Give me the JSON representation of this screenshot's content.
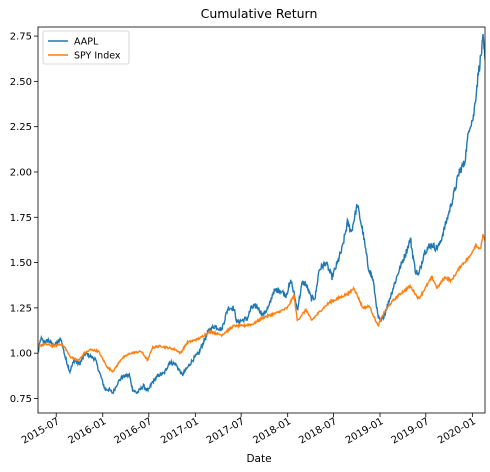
{
  "chart_data": {
    "type": "line",
    "title": "Cumulative Return",
    "xlabel": "Date",
    "ylabel": "",
    "x_range": [
      "2015-04-20",
      "2020-02-20"
    ],
    "ylim": [
      0.67,
      2.8
    ],
    "y_ticks": [
      0.75,
      1.0,
      1.25,
      1.5,
      1.75,
      2.0,
      2.25,
      2.5,
      2.75
    ],
    "y_tick_labels": [
      "0.75",
      "1.00",
      "1.25",
      "1.50",
      "1.75",
      "2.00",
      "2.25",
      "2.50",
      "2.75"
    ],
    "x_ticks": [
      "2015-07-01",
      "2016-01-01",
      "2016-07-01",
      "2017-01-01",
      "2017-07-01",
      "2018-01-01",
      "2018-07-01",
      "2019-01-01",
      "2019-07-01",
      "2020-01-01"
    ],
    "x_tick_labels": [
      "2015-07",
      "2016-01",
      "2016-07",
      "2017-01",
      "2017-07",
      "2018-01",
      "2018-07",
      "2019-01",
      "2019-07",
      "2020-01"
    ],
    "grid": false,
    "legend_position": "top-left",
    "series": [
      {
        "name": "AAPL",
        "color": "#1f77b4",
        "points": [
          [
            "2015-04-20",
            1.0
          ],
          [
            "2015-05-01",
            1.08
          ],
          [
            "2015-05-15",
            1.06
          ],
          [
            "2015-06-01",
            1.07
          ],
          [
            "2015-06-15",
            1.05
          ],
          [
            "2015-07-01",
            1.05
          ],
          [
            "2015-07-20",
            1.08
          ],
          [
            "2015-08-05",
            0.98
          ],
          [
            "2015-08-24",
            0.9
          ],
          [
            "2015-09-10",
            0.96
          ],
          [
            "2015-10-01",
            0.94
          ],
          [
            "2015-10-25",
            1.0
          ],
          [
            "2015-11-15",
            0.98
          ],
          [
            "2015-12-01",
            0.97
          ],
          [
            "2015-12-20",
            0.89
          ],
          [
            "2016-01-10",
            0.8
          ],
          [
            "2016-01-25",
            0.8
          ],
          [
            "2016-02-10",
            0.78
          ],
          [
            "2016-03-01",
            0.84
          ],
          [
            "2016-03-20",
            0.87
          ],
          [
            "2016-04-15",
            0.88
          ],
          [
            "2016-04-28",
            0.8
          ],
          [
            "2016-05-15",
            0.78
          ],
          [
            "2016-06-10",
            0.82
          ],
          [
            "2016-06-28",
            0.79
          ],
          [
            "2016-07-15",
            0.84
          ],
          [
            "2016-08-10",
            0.88
          ],
          [
            "2016-09-01",
            0.89
          ],
          [
            "2016-09-20",
            0.95
          ],
          [
            "2016-10-15",
            0.94
          ],
          [
            "2016-11-10",
            0.88
          ],
          [
            "2016-12-01",
            0.92
          ],
          [
            "2016-12-25",
            0.97
          ],
          [
            "2017-01-15",
            1.0
          ],
          [
            "2017-02-01",
            1.06
          ],
          [
            "2017-02-25",
            1.13
          ],
          [
            "2017-03-20",
            1.15
          ],
          [
            "2017-04-15",
            1.13
          ],
          [
            "2017-05-10",
            1.25
          ],
          [
            "2017-06-01",
            1.25
          ],
          [
            "2017-06-15",
            1.17
          ],
          [
            "2017-07-01",
            1.18
          ],
          [
            "2017-07-25",
            1.19
          ],
          [
            "2017-08-10",
            1.25
          ],
          [
            "2017-09-01",
            1.26
          ],
          [
            "2017-09-25",
            1.21
          ],
          [
            "2017-10-20",
            1.26
          ],
          [
            "2017-11-05",
            1.34
          ],
          [
            "2017-12-01",
            1.35
          ],
          [
            "2017-12-25",
            1.32
          ],
          [
            "2018-01-15",
            1.4
          ],
          [
            "2018-02-08",
            1.24
          ],
          [
            "2018-02-28",
            1.39
          ],
          [
            "2018-03-15",
            1.38
          ],
          [
            "2018-04-05",
            1.3
          ],
          [
            "2018-04-20",
            1.31
          ],
          [
            "2018-05-05",
            1.46
          ],
          [
            "2018-06-01",
            1.5
          ],
          [
            "2018-06-25",
            1.42
          ],
          [
            "2018-07-15",
            1.49
          ],
          [
            "2018-08-05",
            1.58
          ],
          [
            "2018-08-25",
            1.72
          ],
          [
            "2018-09-10",
            1.67
          ],
          [
            "2018-10-03",
            1.82
          ],
          [
            "2018-10-25",
            1.67
          ],
          [
            "2018-11-15",
            1.48
          ],
          [
            "2018-12-05",
            1.4
          ],
          [
            "2018-12-24",
            1.2
          ],
          [
            "2019-01-03",
            1.17
          ],
          [
            "2019-01-20",
            1.22
          ],
          [
            "2019-02-15",
            1.33
          ],
          [
            "2019-03-15",
            1.45
          ],
          [
            "2019-04-15",
            1.56
          ],
          [
            "2019-05-01",
            1.63
          ],
          [
            "2019-05-20",
            1.46
          ],
          [
            "2019-06-03",
            1.43
          ],
          [
            "2019-06-25",
            1.56
          ],
          [
            "2019-07-25",
            1.6
          ],
          [
            "2019-08-10",
            1.58
          ],
          [
            "2019-08-25",
            1.6
          ],
          [
            "2019-09-15",
            1.7
          ],
          [
            "2019-10-15",
            1.85
          ],
          [
            "2019-11-10",
            2.0
          ],
          [
            "2019-12-01",
            2.05
          ],
          [
            "2019-12-20",
            2.25
          ],
          [
            "2020-01-05",
            2.3
          ],
          [
            "2020-01-25",
            2.55
          ],
          [
            "2020-02-05",
            2.65
          ],
          [
            "2020-02-12",
            2.73
          ],
          [
            "2020-02-20",
            2.62
          ]
        ]
      },
      {
        "name": "SPY Index",
        "color": "#ff7f0e",
        "points": [
          [
            "2015-04-20",
            1.04
          ],
          [
            "2015-05-20",
            1.05
          ],
          [
            "2015-06-20",
            1.04
          ],
          [
            "2015-07-20",
            1.05
          ],
          [
            "2015-08-05",
            1.03
          ],
          [
            "2015-08-25",
            0.98
          ],
          [
            "2015-09-28",
            0.96
          ],
          [
            "2015-10-20",
            1.0
          ],
          [
            "2015-11-15",
            1.02
          ],
          [
            "2015-12-15",
            1.01
          ],
          [
            "2016-01-20",
            0.92
          ],
          [
            "2016-02-11",
            0.9
          ],
          [
            "2016-03-15",
            0.97
          ],
          [
            "2016-04-20",
            1.0
          ],
          [
            "2016-06-01",
            1.01
          ],
          [
            "2016-06-27",
            0.96
          ],
          [
            "2016-07-15",
            1.03
          ],
          [
            "2016-08-15",
            1.04
          ],
          [
            "2016-09-15",
            1.03
          ],
          [
            "2016-10-15",
            1.02
          ],
          [
            "2016-11-03",
            1.0
          ],
          [
            "2016-12-01",
            1.06
          ],
          [
            "2017-01-15",
            1.08
          ],
          [
            "2017-02-28",
            1.12
          ],
          [
            "2017-04-15",
            1.1
          ],
          [
            "2017-06-01",
            1.15
          ],
          [
            "2017-07-01",
            1.15
          ],
          [
            "2017-08-15",
            1.16
          ],
          [
            "2017-10-01",
            1.2
          ],
          [
            "2017-11-15",
            1.22
          ],
          [
            "2017-12-31",
            1.25
          ],
          [
            "2018-01-26",
            1.32
          ],
          [
            "2018-02-08",
            1.18
          ],
          [
            "2018-03-15",
            1.24
          ],
          [
            "2018-04-05",
            1.18
          ],
          [
            "2018-05-15",
            1.24
          ],
          [
            "2018-06-15",
            1.28
          ],
          [
            "2018-07-15",
            1.3
          ],
          [
            "2018-08-30",
            1.33
          ],
          [
            "2018-09-20",
            1.36
          ],
          [
            "2018-10-25",
            1.25
          ],
          [
            "2018-11-20",
            1.26
          ],
          [
            "2018-12-24",
            1.15
          ],
          [
            "2019-01-15",
            1.22
          ],
          [
            "2019-02-15",
            1.28
          ],
          [
            "2019-03-15",
            1.32
          ],
          [
            "2019-04-30",
            1.37
          ],
          [
            "2019-06-03",
            1.3
          ],
          [
            "2019-07-25",
            1.42
          ],
          [
            "2019-08-15",
            1.36
          ],
          [
            "2019-09-15",
            1.42
          ],
          [
            "2019-10-10",
            1.4
          ],
          [
            "2019-11-15",
            1.48
          ],
          [
            "2019-12-20",
            1.53
          ],
          [
            "2020-01-15",
            1.6
          ],
          [
            "2020-02-01",
            1.57
          ],
          [
            "2020-02-12",
            1.65
          ],
          [
            "2020-02-20",
            1.62
          ]
        ]
      }
    ]
  }
}
